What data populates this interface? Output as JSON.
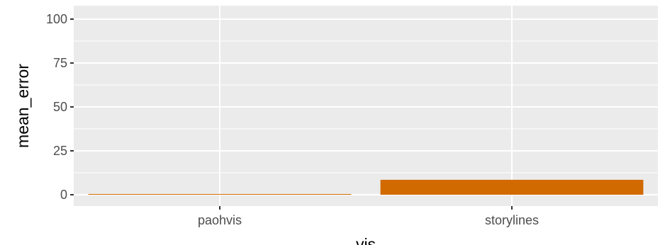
{
  "chart_data": {
    "type": "bar",
    "categories": [
      "paohvis",
      "storylines"
    ],
    "values": [
      0.3,
      8.5
    ],
    "title": "",
    "xlabel": "vis",
    "ylabel": "mean_error",
    "ylim": [
      0,
      100
    ],
    "yticks": [
      0,
      25,
      50,
      75,
      100
    ],
    "grid": true,
    "legend": "none",
    "colors": {
      "bar": "#D16A00",
      "panel_background": "#EBEBEB",
      "gridline": "#FFFFFF",
      "tick_text": "#4D4D4D",
      "axis_title": "#000000"
    }
  }
}
